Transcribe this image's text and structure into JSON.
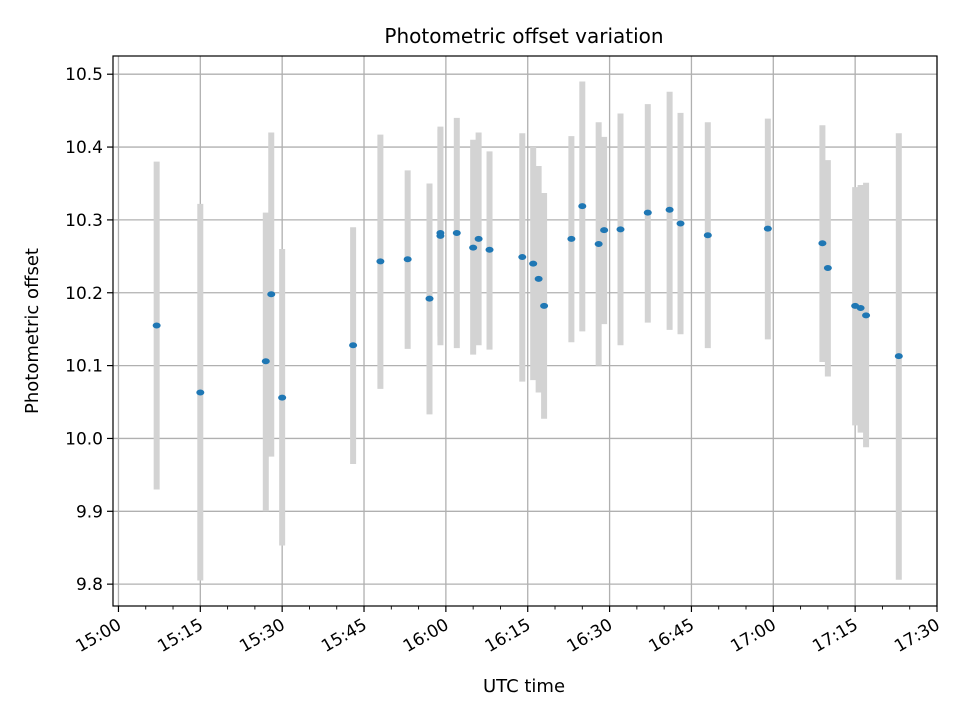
{
  "chart_data": {
    "type": "scatter",
    "title": "Photometric offset variation",
    "xlabel": "UTC time",
    "ylabel": "Photometric offset",
    "x_unit": "UTC clock time (HH:MM)",
    "xlim": [
      "14:59",
      "17:30"
    ],
    "ylim": [
      9.77,
      10.525
    ],
    "xticks": [
      "15:00",
      "15:15",
      "15:30",
      "15:45",
      "16:00",
      "16:15",
      "16:30",
      "16:45",
      "17:00",
      "17:15",
      "17:30"
    ],
    "yticks": [
      "9.8",
      "9.9",
      "10.0",
      "10.1",
      "10.2",
      "10.3",
      "10.4",
      "10.5"
    ],
    "grid": true,
    "colors": {
      "point": "#1f77b4",
      "errorbar": "#d3d3d3",
      "grid": "#b0b0b0"
    },
    "series": [
      {
        "marker": "point",
        "points": [
          {
            "t": "15:07",
            "y": 10.155,
            "lo": 9.93,
            "hi": 10.38
          },
          {
            "t": "15:15",
            "y": 10.063,
            "lo": 9.805,
            "hi": 10.322
          },
          {
            "t": "15:27",
            "y": 10.106,
            "lo": 9.9,
            "hi": 10.31
          },
          {
            "t": "15:28",
            "y": 10.198,
            "lo": 9.975,
            "hi": 10.42
          },
          {
            "t": "15:30",
            "y": 10.056,
            "lo": 9.853,
            "hi": 10.26
          },
          {
            "t": "15:43",
            "y": 10.128,
            "lo": 9.965,
            "hi": 10.29
          },
          {
            "t": "15:48",
            "y": 10.243,
            "lo": 10.068,
            "hi": 10.417
          },
          {
            "t": "15:53",
            "y": 10.246,
            "lo": 10.123,
            "hi": 10.368
          },
          {
            "t": "15:57",
            "y": 10.192,
            "lo": 10.033,
            "hi": 10.35
          },
          {
            "t": "15:59",
            "y": 10.278,
            "lo": 10.128,
            "hi": 10.428
          },
          {
            "t": "15:59",
            "y": 10.282,
            "lo": 10.14,
            "hi": 10.424
          },
          {
            "t": "16:02",
            "y": 10.282,
            "lo": 10.124,
            "hi": 10.44
          },
          {
            "t": "16:05",
            "y": 10.262,
            "lo": 10.115,
            "hi": 10.41
          },
          {
            "t": "16:06",
            "y": 10.274,
            "lo": 10.128,
            "hi": 10.42
          },
          {
            "t": "16:08",
            "y": 10.259,
            "lo": 10.122,
            "hi": 10.394
          },
          {
            "t": "16:14",
            "y": 10.249,
            "lo": 10.078,
            "hi": 10.419
          },
          {
            "t": "16:16",
            "y": 10.24,
            "lo": 10.08,
            "hi": 10.4
          },
          {
            "t": "16:17",
            "y": 10.219,
            "lo": 10.063,
            "hi": 10.374
          },
          {
            "t": "16:18",
            "y": 10.182,
            "lo": 10.027,
            "hi": 10.337
          },
          {
            "t": "16:23",
            "y": 10.274,
            "lo": 10.132,
            "hi": 10.415
          },
          {
            "t": "16:25",
            "y": 10.319,
            "lo": 10.147,
            "hi": 10.49
          },
          {
            "t": "16:28",
            "y": 10.267,
            "lo": 10.1,
            "hi": 10.434
          },
          {
            "t": "16:29",
            "y": 10.286,
            "lo": 10.157,
            "hi": 10.414
          },
          {
            "t": "16:32",
            "y": 10.287,
            "lo": 10.128,
            "hi": 10.446
          },
          {
            "t": "16:37",
            "y": 10.31,
            "lo": 10.159,
            "hi": 10.459
          },
          {
            "t": "16:41",
            "y": 10.314,
            "lo": 10.149,
            "hi": 10.476
          },
          {
            "t": "16:43",
            "y": 10.295,
            "lo": 10.143,
            "hi": 10.447
          },
          {
            "t": "16:48",
            "y": 10.279,
            "lo": 10.124,
            "hi": 10.434
          },
          {
            "t": "16:59",
            "y": 10.288,
            "lo": 10.136,
            "hi": 10.439
          },
          {
            "t": "17:09",
            "y": 10.268,
            "lo": 10.105,
            "hi": 10.43
          },
          {
            "t": "17:10",
            "y": 10.234,
            "lo": 10.085,
            "hi": 10.382
          },
          {
            "t": "17:15",
            "y": 10.182,
            "lo": 10.018,
            "hi": 10.345
          },
          {
            "t": "17:16",
            "y": 10.179,
            "lo": 10.008,
            "hi": 10.348
          },
          {
            "t": "17:17",
            "y": 10.169,
            "lo": 9.988,
            "hi": 10.351
          },
          {
            "t": "17:23",
            "y": 10.113,
            "lo": 9.806,
            "hi": 10.419
          }
        ]
      }
    ]
  }
}
